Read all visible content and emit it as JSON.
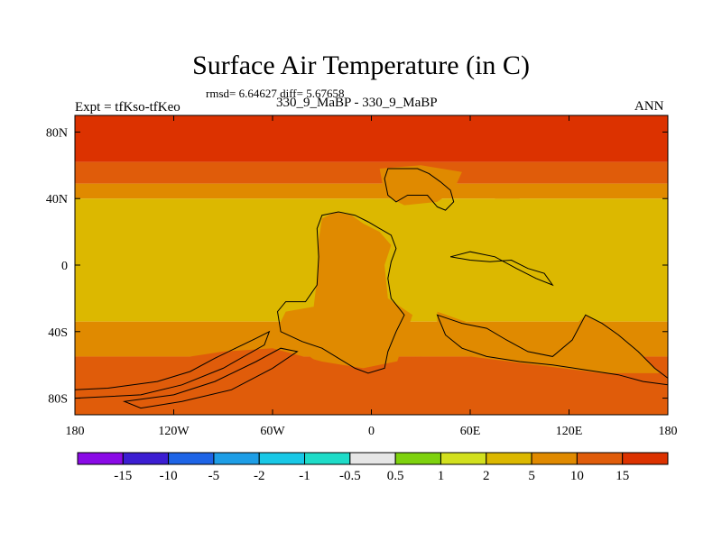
{
  "chart_data": {
    "type": "heatmap",
    "title": "Surface Air Temperature (in C)",
    "stats": "rmsd= 6.64627 diff= 5.67658",
    "experiment": "Expt = tfKso-tfKeo",
    "cases": "330_9_MaBP - 330_9_MaBP",
    "season": "ANN",
    "x_axis": {
      "range": [
        -180,
        180
      ],
      "ticks": [
        {
          "value": -180,
          "label": "180"
        },
        {
          "value": -120,
          "label": "120W"
        },
        {
          "value": -60,
          "label": "60W"
        },
        {
          "value": 0,
          "label": "0"
        },
        {
          "value": 60,
          "label": "60E"
        },
        {
          "value": 120,
          "label": "120E"
        },
        {
          "value": 180,
          "label": "180"
        }
      ]
    },
    "y_axis": {
      "range": [
        -90,
        90
      ],
      "ticks": [
        {
          "value": 80,
          "label": "80N"
        },
        {
          "value": 40,
          "label": "40N"
        },
        {
          "value": 0,
          "label": "0"
        },
        {
          "value": -40,
          "label": "40S"
        },
        {
          "value": -80,
          "label": "80S"
        }
      ]
    },
    "colorbar": {
      "colors": [
        "#8a0ae6",
        "#3c1ed2",
        "#1e64e6",
        "#1e9ee6",
        "#19c8e6",
        "#1edcc8",
        "#e6e6e6",
        "#7ed20e",
        "#d2e01e",
        "#dcb800",
        "#e08a00",
        "#e05c0a",
        "#dc3200"
      ],
      "labels": [
        "-15",
        "-10",
        "-5",
        "-2",
        "-1",
        "-0.5",
        "0.5",
        "1",
        "2",
        "5",
        "10",
        "15"
      ]
    },
    "zonal_bands": [
      {
        "lat_min": 62,
        "lat_max": 90,
        "level": "15+",
        "color": "#dc3200"
      },
      {
        "lat_min": 49,
        "lat_max": 62,
        "level": "10-15",
        "color": "#e05c0a"
      },
      {
        "lat_min": 40,
        "lat_max": 49,
        "level": "5-10",
        "color": "#e08a00"
      },
      {
        "lat_min": -34,
        "lat_max": 40,
        "level": "2-5",
        "color": "#dcb800"
      },
      {
        "lat_min": -55,
        "lat_max": -34,
        "level": "5-10",
        "color": "#e08a00"
      },
      {
        "lat_min": -75,
        "lat_max": -55,
        "level": "10-15",
        "color": "#e05c0a"
      },
      {
        "lat_min": -90,
        "lat_max": -75,
        "level": "15+",
        "color": "#dc3200"
      }
    ],
    "regional_patches": [
      {
        "name": "central-continent",
        "level": "5-10",
        "color": "#e08a00",
        "points": [
          [
            -30,
            28
          ],
          [
            -22,
            32
          ],
          [
            -12,
            30
          ],
          [
            -5,
            25
          ],
          [
            5,
            20
          ],
          [
            12,
            12
          ],
          [
            8,
            0
          ],
          [
            10,
            -20
          ],
          [
            25,
            -30
          ],
          [
            20,
            -45
          ],
          [
            15,
            -60
          ],
          [
            5,
            -75
          ],
          [
            -15,
            -75
          ],
          [
            -30,
            -60
          ],
          [
            -45,
            -50
          ],
          [
            -58,
            -40
          ],
          [
            -52,
            -28
          ],
          [
            -35,
            -25
          ],
          [
            -32,
            0
          ],
          [
            -32,
            15
          ]
        ]
      },
      {
        "name": "southern-belt-west",
        "level": "10-15",
        "color": "#e05c0a",
        "points": [
          [
            -180,
            -62
          ],
          [
            -130,
            -58
          ],
          [
            -90,
            -52
          ],
          [
            -60,
            -50
          ],
          [
            -30,
            -58
          ],
          [
            -5,
            -62
          ],
          [
            30,
            -55
          ],
          [
            60,
            -62
          ],
          [
            120,
            -58
          ],
          [
            155,
            -62
          ],
          [
            180,
            -65
          ],
          [
            180,
            -90
          ],
          [
            -180,
            -90
          ]
        ]
      },
      {
        "name": "northern-highland",
        "level": "5-10",
        "color": "#e08a00",
        "points": [
          [
            5,
            58
          ],
          [
            30,
            60
          ],
          [
            55,
            56
          ],
          [
            50,
            45
          ],
          [
            40,
            38
          ],
          [
            20,
            36
          ],
          [
            8,
            42
          ]
        ]
      },
      {
        "name": "east-band-patch",
        "level": "5-10",
        "color": "#e08a00",
        "points": [
          [
            75,
            48
          ],
          [
            90,
            48
          ],
          [
            90,
            40
          ],
          [
            75,
            40
          ]
        ]
      },
      {
        "name": "southern-continent-south",
        "level": "5-10",
        "color": "#e08a00",
        "points": [
          [
            40,
            -28
          ],
          [
            60,
            -35
          ],
          [
            80,
            -40
          ],
          [
            100,
            -45
          ],
          [
            118,
            -42
          ],
          [
            130,
            -30
          ],
          [
            145,
            -38
          ],
          [
            165,
            -55
          ],
          [
            175,
            -65
          ],
          [
            140,
            -65
          ],
          [
            100,
            -60
          ],
          [
            60,
            -55
          ],
          [
            40,
            -45
          ]
        ]
      }
    ],
    "coastlines": [
      {
        "name": "north-continent",
        "points": [
          [
            10,
            58
          ],
          [
            28,
            58
          ],
          [
            35,
            55
          ],
          [
            42,
            50
          ],
          [
            48,
            45
          ],
          [
            50,
            38
          ],
          [
            45,
            33
          ],
          [
            40,
            35
          ],
          [
            34,
            42
          ],
          [
            22,
            42
          ],
          [
            15,
            38
          ],
          [
            10,
            42
          ],
          [
            8,
            52
          ]
        ]
      },
      {
        "name": "central-continent",
        "points": [
          [
            -30,
            30
          ],
          [
            -20,
            32
          ],
          [
            -10,
            30
          ],
          [
            -2,
            26
          ],
          [
            5,
            22
          ],
          [
            12,
            18
          ],
          [
            15,
            10
          ],
          [
            12,
            2
          ],
          [
            10,
            -8
          ],
          [
            12,
            -20
          ],
          [
            20,
            -30
          ],
          [
            15,
            -40
          ],
          [
            10,
            -52
          ],
          [
            8,
            -62
          ],
          [
            -2,
            -65
          ],
          [
            -10,
            -62
          ],
          [
            -20,
            -56
          ],
          [
            -30,
            -50
          ],
          [
            -42,
            -46
          ],
          [
            -55,
            -40
          ],
          [
            -57,
            -28
          ],
          [
            -52,
            -22
          ],
          [
            -40,
            -22
          ],
          [
            -33,
            -12
          ],
          [
            -32,
            5
          ],
          [
            -33,
            22
          ]
        ]
      },
      {
        "name": "east-archipelago",
        "points": [
          [
            48,
            5
          ],
          [
            60,
            8
          ],
          [
            75,
            5
          ],
          [
            88,
            -2
          ],
          [
            100,
            -8
          ],
          [
            110,
            -12
          ],
          [
            105,
            -5
          ],
          [
            95,
            -2
          ],
          [
            85,
            3
          ],
          [
            72,
            2
          ],
          [
            60,
            3
          ]
        ]
      },
      {
        "name": "south-east-continent",
        "points": [
          [
            40,
            -30
          ],
          [
            55,
            -35
          ],
          [
            70,
            -38
          ],
          [
            82,
            -45
          ],
          [
            95,
            -52
          ],
          [
            110,
            -55
          ],
          [
            122,
            -45
          ],
          [
            130,
            -30
          ],
          [
            140,
            -35
          ],
          [
            150,
            -42
          ],
          [
            162,
            -52
          ],
          [
            172,
            -62
          ],
          [
            180,
            -68
          ],
          [
            180,
            -72
          ],
          [
            165,
            -70
          ],
          [
            150,
            -66
          ],
          [
            130,
            -63
          ],
          [
            110,
            -60
          ],
          [
            90,
            -58
          ],
          [
            70,
            -55
          ],
          [
            55,
            -50
          ],
          [
            45,
            -42
          ]
        ]
      },
      {
        "name": "southern-strip-west",
        "points": [
          [
            -180,
            -75
          ],
          [
            -160,
            -74
          ],
          [
            -130,
            -70
          ],
          [
            -110,
            -64
          ],
          [
            -95,
            -56
          ],
          [
            -70,
            -44
          ],
          [
            -62,
            -40
          ],
          [
            -65,
            -48
          ],
          [
            -90,
            -62
          ],
          [
            -115,
            -72
          ],
          [
            -140,
            -78
          ],
          [
            -180,
            -80
          ]
        ]
      },
      {
        "name": "southern-strip-mid",
        "points": [
          [
            -150,
            -82
          ],
          [
            -120,
            -78
          ],
          [
            -95,
            -70
          ],
          [
            -70,
            -58
          ],
          [
            -55,
            -50
          ],
          [
            -45,
            -52
          ],
          [
            -60,
            -62
          ],
          [
            -85,
            -75
          ],
          [
            -115,
            -82
          ],
          [
            -140,
            -86
          ]
        ]
      }
    ]
  }
}
